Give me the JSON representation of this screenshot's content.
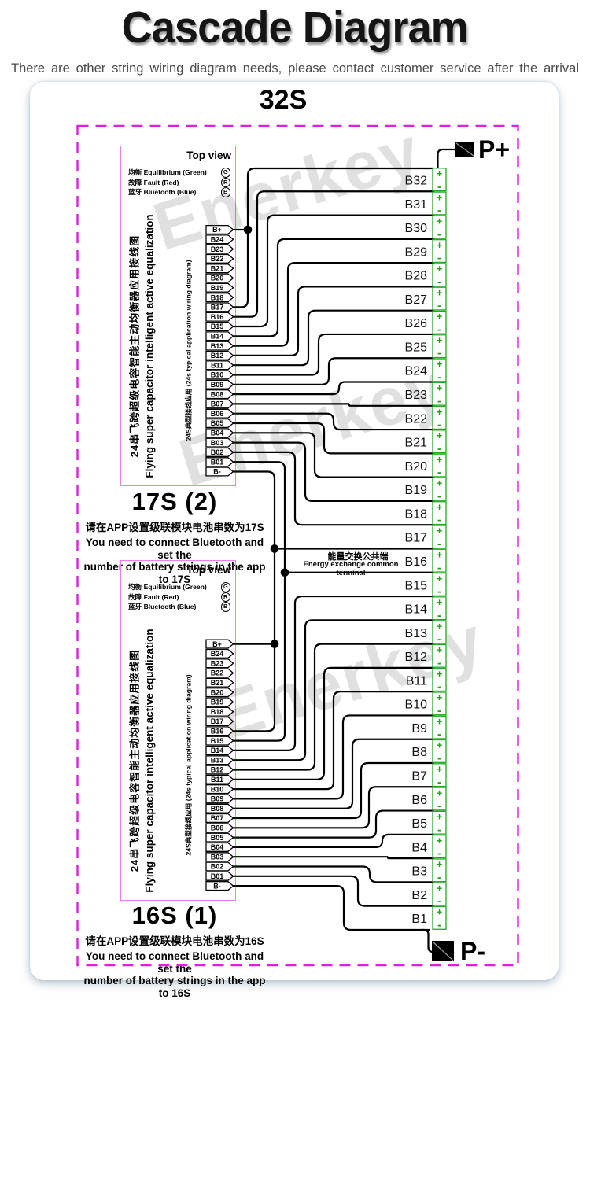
{
  "header": {
    "title": "Cascade Diagram",
    "subtitle": "There are other string wiring diagram needs, please contact customer service after the arrival"
  },
  "card": {
    "heading": "32S"
  },
  "watermark": {
    "text": "Enerkey"
  },
  "terminals": {
    "positive": "P+",
    "negative": "P-"
  },
  "energy_terminal": {
    "cn": "能量交换公共端",
    "en": "Energy exchange common terminal"
  },
  "diagram": {
    "batteries": [
      "B32",
      "B31",
      "B30",
      "B29",
      "B28",
      "B27",
      "B26",
      "B25",
      "B24",
      "B23",
      "B22",
      "B21",
      "B20",
      "B19",
      "B18",
      "B17",
      "B16",
      "B15",
      "B14",
      "B13",
      "B12",
      "B11",
      "B10",
      "B9",
      "B8",
      "B7",
      "B6",
      "B5",
      "B4",
      "B3",
      "B2",
      "B1"
    ],
    "plus_symbol": "+",
    "minus_symbol": "-",
    "pins": [
      "B+",
      "B24",
      "B23",
      "B22",
      "B21",
      "B20",
      "B19",
      "B18",
      "B17",
      "B16",
      "B15",
      "B14",
      "B13",
      "B12",
      "B11",
      "B10",
      "B09",
      "B08",
      "B07",
      "B06",
      "B05",
      "B04",
      "B03",
      "B02",
      "B01",
      "B-"
    ],
    "modules": [
      {
        "top_view": "Top view",
        "legend": [
          {
            "label": "均衡 Equilibrium  (Green)",
            "letter": "G"
          },
          {
            "label": "故障 Fault   (Red)",
            "letter": "R"
          },
          {
            "label": "蓝牙 Bluetooth  (Blue)",
            "letter": "B"
          }
        ],
        "side_text_cn": "24串飞跨超级电容智能主动均衡器应用接线图",
        "side_text_en": "Flying super capacitor intelligent active equalization",
        "inner_text": "24S典型接线应用  (24s typical application wiring diagram)",
        "caption": "17S  (2)",
        "note_cn": "请在APP设置级联模块电池串数为17S",
        "note_en_line1": "You need to connect Bluetooth and set the",
        "note_en_line2": "number of battery strings in the app to 17S"
      },
      {
        "top_view": "Top view",
        "legend": [
          {
            "label": "均衡 Equilibrium  (Green)",
            "letter": "G"
          },
          {
            "label": "故障 Fault   (Red)",
            "letter": "R"
          },
          {
            "label": "蓝牙 Bluetooth  (Blue)",
            "letter": "B"
          }
        ],
        "side_text_cn": "24串飞跨超级电容智能主动均衡器应用接线图",
        "side_text_en": "Flying super capacitor intelligent active equalization",
        "inner_text": "24S典型接线应用  (24s typical application wiring diagram)",
        "caption": "16S  (1)",
        "note_cn": "请在APP设置级联模块电池串数为16S",
        "note_en_line1": "You need to connect Bluetooth and set the",
        "note_en_line2": "number of battery strings in the app to 16S"
      }
    ]
  }
}
